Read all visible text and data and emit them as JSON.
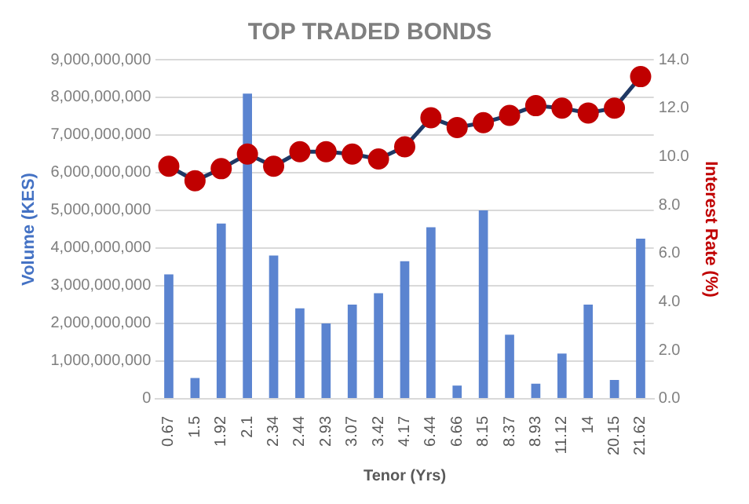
{
  "chart_data": {
    "type": "bar",
    "title": "TOP TRADED BONDS",
    "xlabel": "Tenor (Yrs)",
    "ylabel": "Volume (KES)",
    "y2label": "Interest Rate (%)",
    "categories": [
      "0.67",
      "1.5",
      "1.92",
      "2.1",
      "2.34",
      "2.44",
      "2.93",
      "3.07",
      "3.42",
      "4.17",
      "6.44",
      "6.66",
      "8.15",
      "8.37",
      "8.93",
      "11.12",
      "14",
      "20.15",
      "21.62"
    ],
    "series": [
      {
        "color": "#5b84d0",
        "values": [
          3300000000,
          550000000,
          4650000000,
          8100000000,
          3800000000,
          2400000000,
          2000000000,
          2500000000,
          2800000000,
          3650000000,
          4550000000,
          350000000,
          5000000000,
          1700000000,
          400000000,
          1200000000,
          2500000000,
          500000000,
          4250000000
        ]
      },
      {
        "type": "line",
        "axis": "y2",
        "color": "#1f3864",
        "colors": [
          "#c00000",
          "#c00000",
          "#c00000",
          "#c00000",
          "#c00000",
          "#c00000",
          "#c00000",
          "#c00000",
          "#c00000",
          "#c00000",
          "#c00000",
          "#c00000",
          "#c00000",
          "#c00000",
          "#c00000",
          "#c00000",
          "#c00000",
          "#c00000",
          "#c00000"
        ],
        "values": [
          9.6,
          9.0,
          9.5,
          10.1,
          9.6,
          10.2,
          10.2,
          10.1,
          9.9,
          10.4,
          11.6,
          11.2,
          11.4,
          11.7,
          12.1,
          12.0,
          11.8,
          12.0,
          13.3
        ]
      }
    ],
    "ylim": [
      0,
      9000000000
    ],
    "yticks": [
      {
        "value": 0,
        "label": "0"
      },
      {
        "value": 1000000000,
        "label": "1,000,000,000"
      },
      {
        "value": 2000000000,
        "label": "2,000,000,000"
      },
      {
        "value": 3000000000,
        "label": "3,000,000,000"
      },
      {
        "value": 4000000000,
        "label": "4,000,000,000"
      },
      {
        "value": 5000000000,
        "label": "5,000,000,000"
      },
      {
        "value": 6000000000,
        "label": "6,000,000,000"
      },
      {
        "value": 7000000000,
        "label": "7,000,000,000"
      },
      {
        "value": 8000000000,
        "label": "8,000,000,000"
      },
      {
        "value": 9000000000,
        "label": "9,000,000,000"
      }
    ],
    "y2lim": [
      0,
      14
    ],
    "y2ticks": [
      {
        "value": 0,
        "label": "0.0"
      },
      {
        "value": 2,
        "label": "2.0"
      },
      {
        "value": 4,
        "label": "4.0"
      },
      {
        "value": 6,
        "label": "6.0"
      },
      {
        "value": 8,
        "label": "8.0"
      },
      {
        "value": 10,
        "label": "10.0"
      },
      {
        "value": 12,
        "label": "12.0"
      },
      {
        "value": 14,
        "label": "14.0"
      }
    ],
    "grid": "y",
    "legend": false,
    "marker": "circle",
    "line_style": "solid"
  }
}
